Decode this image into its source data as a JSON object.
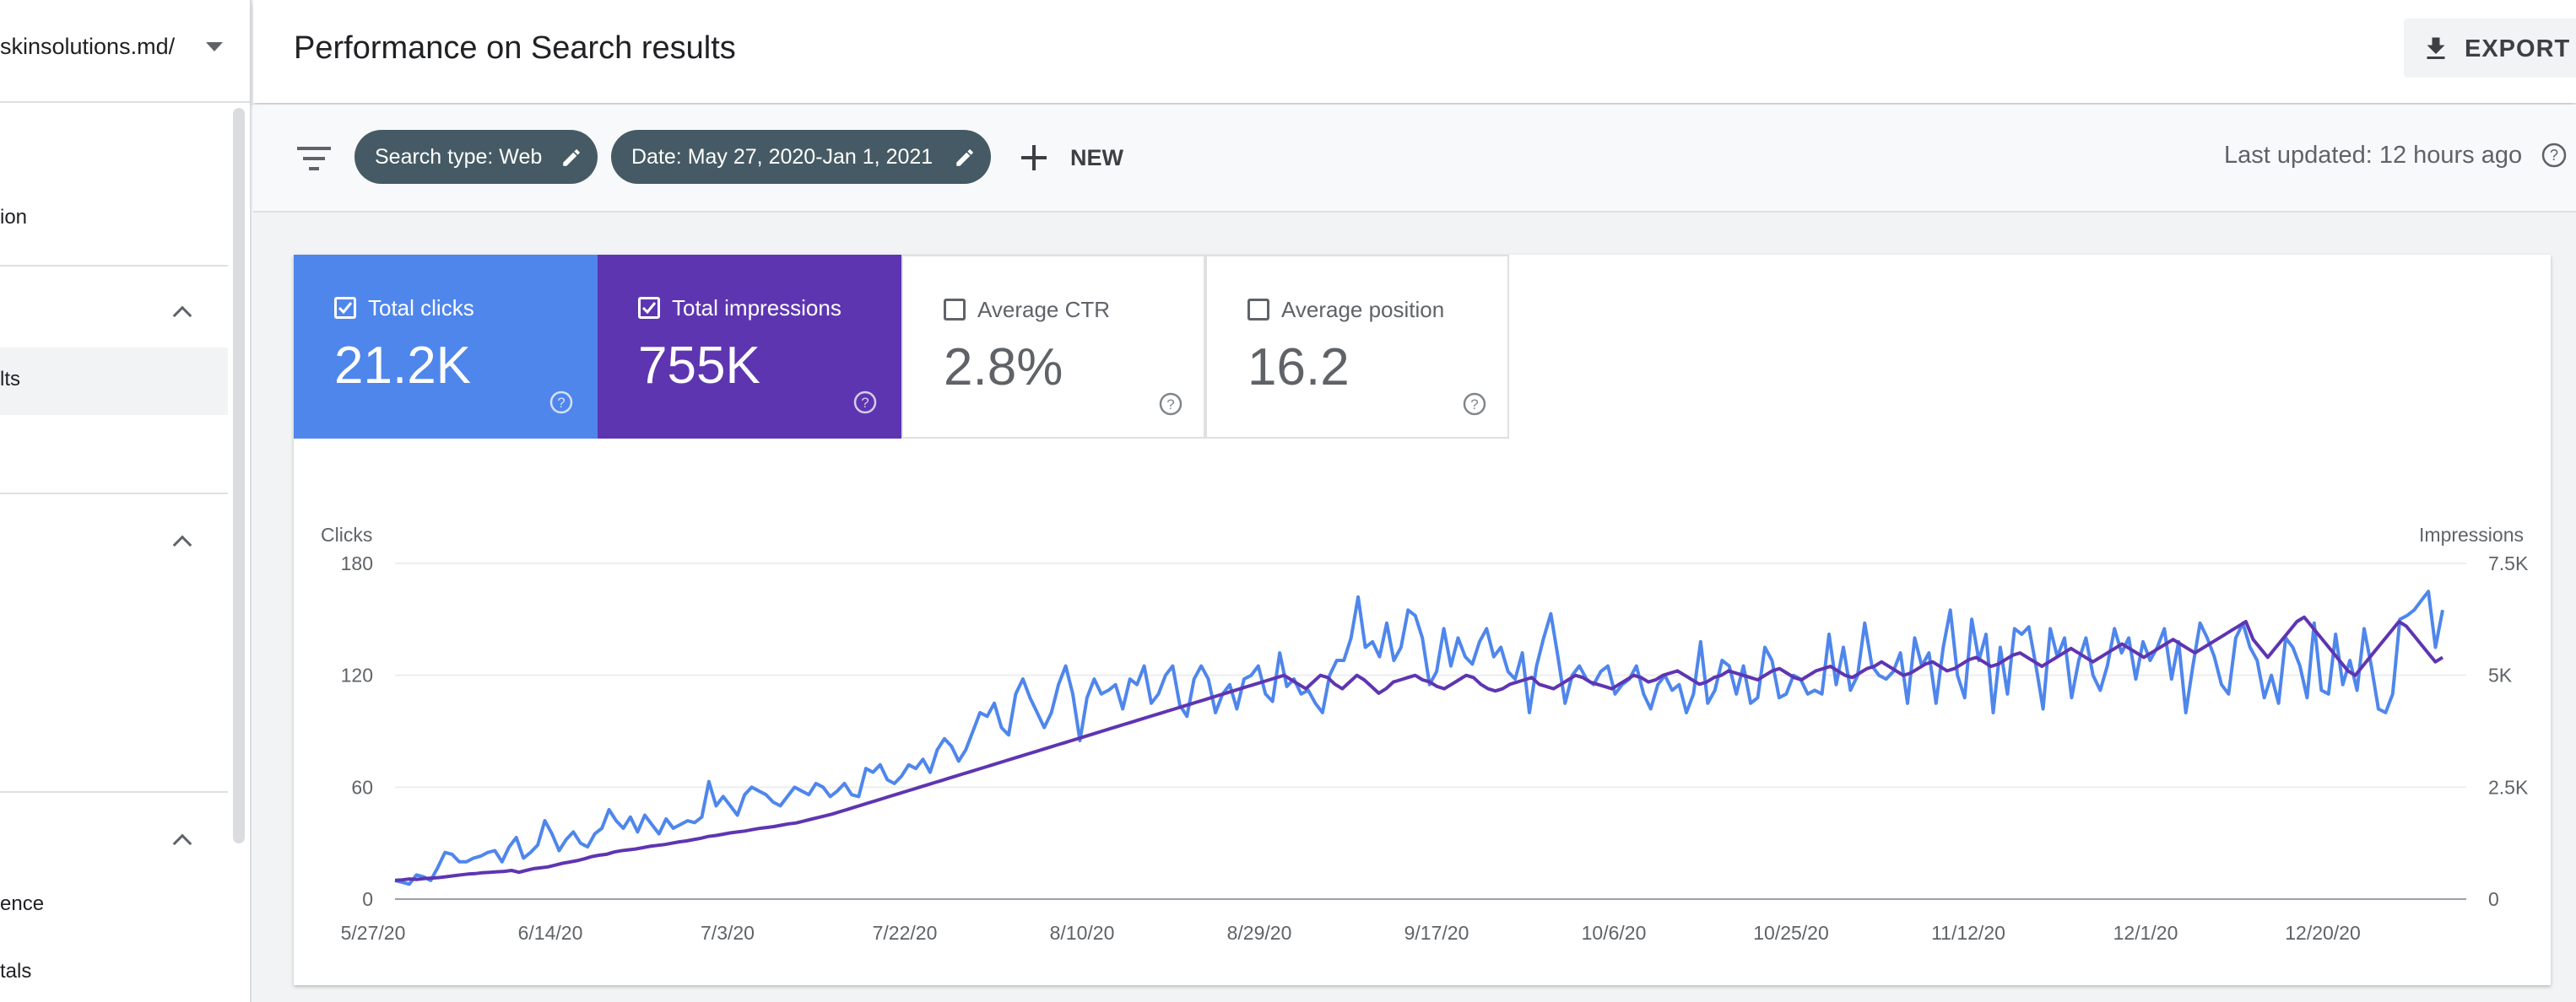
{
  "sidebar": {
    "property": "skinsolutions.md/",
    "items": [
      {
        "label": "ion",
        "top": 244
      },
      {
        "label": "lts",
        "top": 436
      },
      {
        "label": "ence",
        "top": 1058
      },
      {
        "label": "tals",
        "top": 1138
      }
    ]
  },
  "header": {
    "title": "Performance on Search results",
    "export_label": "EXPORT"
  },
  "filters": {
    "search_type": "Search type: Web",
    "date": "Date: May 27, 2020-Jan 1, 2021",
    "new_label": "NEW",
    "last_updated": "Last updated: 12 hours ago"
  },
  "metrics": [
    {
      "label": "Total clicks",
      "value": "21.2K",
      "checked": true,
      "color": "#4f86ec"
    },
    {
      "label": "Total impressions",
      "value": "755K",
      "checked": true,
      "color": "#5e35b1"
    },
    {
      "label": "Average CTR",
      "value": "2.8%",
      "checked": false,
      "color": "#ffffff"
    },
    {
      "label": "Average position",
      "value": "16.2",
      "checked": false,
      "color": "#ffffff"
    }
  ],
  "chart_data": {
    "type": "line",
    "ylabel_left": "Clicks",
    "ylabel_right": "Impressions",
    "left_ticks": [
      "180",
      "120",
      "60",
      "0"
    ],
    "right_ticks": [
      "7.5K",
      "5K",
      "2.5K",
      "0"
    ],
    "ylim_left": [
      0,
      180
    ],
    "ylim_right": [
      0,
      7500
    ],
    "x_ticks": [
      "5/27/20",
      "6/14/20",
      "7/3/20",
      "7/22/20",
      "8/10/20",
      "8/29/20",
      "9/17/20",
      "10/6/20",
      "10/25/20",
      "11/12/20",
      "12/1/20",
      "12/20/20"
    ],
    "series": [
      {
        "name": "Clicks",
        "axis": "left",
        "color": "#4f86ec",
        "values": [
          10,
          9,
          8,
          13,
          12,
          10,
          17,
          25,
          24,
          20,
          20,
          22,
          23,
          25,
          26,
          20,
          28,
          33,
          22,
          25,
          29,
          42,
          35,
          26,
          32,
          36,
          30,
          28,
          35,
          38,
          48,
          42,
          38,
          44,
          36,
          45,
          40,
          35,
          43,
          38,
          40,
          42,
          41,
          44,
          63,
          50,
          55,
          50,
          45,
          56,
          60,
          58,
          56,
          52,
          50,
          55,
          60,
          58,
          56,
          62,
          60,
          55,
          58,
          62,
          56,
          55,
          70,
          68,
          72,
          64,
          62,
          66,
          72,
          70,
          75,
          68,
          80,
          86,
          82,
          74,
          80,
          90,
          100,
          98,
          105,
          92,
          88,
          110,
          118,
          108,
          100,
          92,
          100,
          115,
          125,
          110,
          85,
          108,
          118,
          110,
          112,
          115,
          102,
          118,
          115,
          125,
          105,
          110,
          120,
          125,
          104,
          98,
          118,
          125,
          118,
          100,
          110,
          115,
          102,
          118,
          120,
          125,
          110,
          106,
          132,
          114,
          118,
          110,
          112,
          105,
          100,
          120,
          128,
          128,
          140,
          162,
          135,
          138,
          130,
          148,
          128,
          135,
          155,
          152,
          140,
          115,
          122,
          145,
          125,
          140,
          130,
          126,
          138,
          145,
          130,
          135,
          122,
          118,
          132,
          100,
          125,
          140,
          153,
          130,
          105,
          120,
          125,
          118,
          115,
          122,
          125,
          110,
          115,
          118,
          125,
          110,
          102,
          115,
          120,
          112,
          115,
          100,
          110,
          138,
          105,
          112,
          128,
          125,
          110,
          125,
          105,
          108,
          135,
          128,
          108,
          110,
          120,
          118,
          110,
          112,
          110,
          142,
          115,
          135,
          112,
          120,
          148,
          125,
          120,
          118,
          122,
          132,
          105,
          140,
          125,
          132,
          105,
          135,
          155,
          120,
          108,
          150,
          128,
          142,
          100,
          135,
          110,
          145,
          142,
          146,
          125,
          102,
          145,
          130,
          140,
          108,
          128,
          140,
          120,
          112,
          125,
          145,
          132,
          140,
          118,
          138,
          128,
          135,
          145,
          118,
          138,
          100,
          125,
          148,
          140,
          130,
          115,
          110,
          140,
          148,
          135,
          128,
          108,
          120,
          105,
          140,
          135,
          125,
          108,
          148,
          112,
          110,
          142,
          115,
          128,
          112,
          145,
          125,
          102,
          100,
          110,
          150,
          152,
          155,
          160,
          165,
          135,
          155
        ]
      },
      {
        "name": "Impressions",
        "axis": "right",
        "color": "#5e35b1",
        "values": [
          420,
          430,
          450,
          440,
          460,
          470,
          480,
          500,
          520,
          540,
          560,
          570,
          590,
          600,
          610,
          620,
          640,
          600,
          640,
          680,
          700,
          720,
          760,
          800,
          830,
          860,
          900,
          950,
          980,
          1000,
          1050,
          1080,
          1100,
          1120,
          1150,
          1180,
          1200,
          1220,
          1250,
          1280,
          1300,
          1330,
          1360,
          1400,
          1420,
          1450,
          1480,
          1500,
          1520,
          1550,
          1580,
          1600,
          1620,
          1650,
          1680,
          1700,
          1740,
          1780,
          1820,
          1860,
          1900,
          1950,
          2000,
          2050,
          2100,
          2150,
          2200,
          2250,
          2300,
          2350,
          2400,
          2450,
          2500,
          2550,
          2600,
          2650,
          2700,
          2750,
          2800,
          2850,
          2900,
          2950,
          3000,
          3050,
          3100,
          3150,
          3200,
          3250,
          3300,
          3350,
          3400,
          3450,
          3500,
          3550,
          3600,
          3650,
          3700,
          3750,
          3800,
          3850,
          3900,
          3950,
          4000,
          4050,
          4100,
          4150,
          4200,
          4250,
          4300,
          4350,
          4400,
          4450,
          4500,
          4550,
          4600,
          4650,
          4700,
          4750,
          4800,
          4850,
          4900,
          4950,
          5000,
          4900,
          4800,
          4700,
          4850,
          5000,
          4950,
          4800,
          4700,
          4850,
          5000,
          4900,
          4750,
          4600,
          4700,
          4850,
          4900,
          4950,
          5000,
          4900,
          4850,
          4750,
          4700,
          4800,
          4900,
          5000,
          4950,
          4800,
          4700,
          4650,
          4700,
          4800,
          4850,
          4900,
          4950,
          4800,
          4750,
          4700,
          4800,
          4900,
          5000,
          4950,
          4850,
          4800,
          4750,
          4700,
          4800,
          4900,
          5000,
          4950,
          4850,
          4900,
          5000,
          5050,
          5100,
          5000,
          4900,
          4800,
          4850,
          4950,
          5000,
          5100,
          5050,
          5000,
          4950,
          4900,
          5000,
          5100,
          5150,
          5050,
          4950,
          4900,
          5000,
          5100,
          5150,
          5200,
          5100,
          5000,
          4950,
          5050,
          5150,
          5200,
          5300,
          5200,
          5100,
          5000,
          5050,
          5150,
          5250,
          5300,
          5200,
          5100,
          5150,
          5250,
          5350,
          5400,
          5300,
          5200,
          5250,
          5350,
          5450,
          5500,
          5400,
          5300,
          5200,
          5300,
          5400,
          5500,
          5600,
          5500,
          5400,
          5300,
          5400,
          5500,
          5600,
          5700,
          5600,
          5500,
          5400,
          5500,
          5600,
          5700,
          5800,
          5700,
          5600,
          5500,
          5600,
          5700,
          5800,
          5900,
          6000,
          6100,
          6200,
          5800,
          5600,
          5400,
          5600,
          5800,
          6000,
          6200,
          6300,
          6100,
          5900,
          5700,
          5500,
          5300,
          5100,
          5000,
          5200,
          5400,
          5600,
          5800,
          6000,
          6200,
          6100,
          5900,
          5700,
          5500,
          5300,
          5400
        ]
      }
    ]
  }
}
